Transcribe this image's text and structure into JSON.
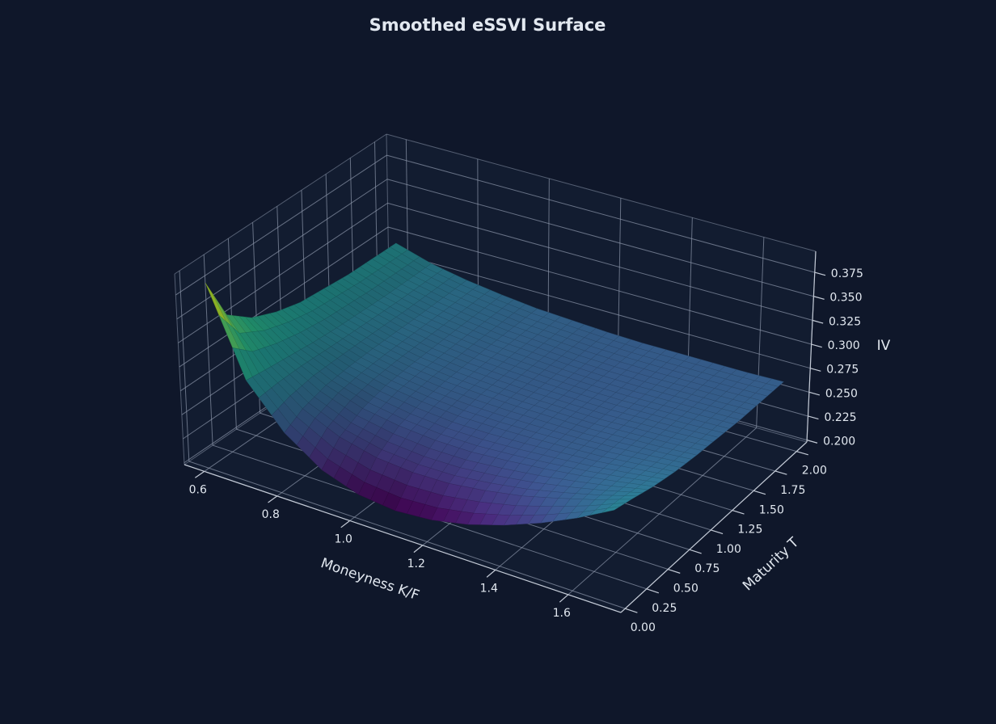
{
  "chart_data": {
    "type": "surface",
    "title": "Smoothed eSSVI Surface",
    "xlabel": "Moneyness K/F",
    "ylabel": "Maturity T",
    "zlabel": "IV",
    "xlim": [
      0.545,
      1.745
    ],
    "ylim": [
      -0.05,
      2.12
    ],
    "zlim": [
      0.198,
      0.397
    ],
    "x_ticks": [
      "0.6",
      "0.8",
      "1.0",
      "1.2",
      "1.4",
      "1.6"
    ],
    "y_ticks": [
      "0.00",
      "0.25",
      "0.50",
      "0.75",
      "1.00",
      "1.25",
      "1.50",
      "1.75",
      "2.00"
    ],
    "z_ticks": [
      "0.200",
      "0.225",
      "0.250",
      "0.275",
      "0.300",
      "0.325",
      "0.350",
      "0.375"
    ],
    "grid": true,
    "colormap": "viridis",
    "moneyness": [
      0.6,
      0.7,
      0.8,
      0.9,
      1.0,
      1.1,
      1.2,
      1.3,
      1.4,
      1.5,
      1.6,
      1.7
    ],
    "maturity": [
      0.05,
      0.25,
      0.5,
      0.75,
      1.0,
      1.5,
      2.0
    ],
    "iv": [
      [
        0.388,
        0.299,
        0.257,
        0.231,
        0.218,
        0.214,
        0.217,
        0.225,
        0.237,
        0.252,
        0.27,
        0.291
      ],
      [
        0.341,
        0.296,
        0.268,
        0.251,
        0.242,
        0.239,
        0.24,
        0.245,
        0.252,
        0.262,
        0.273,
        0.286
      ],
      [
        0.321,
        0.293,
        0.275,
        0.263,
        0.257,
        0.254,
        0.254,
        0.257,
        0.261,
        0.266,
        0.272,
        0.279
      ],
      [
        0.31,
        0.29,
        0.277,
        0.269,
        0.264,
        0.261,
        0.261,
        0.262,
        0.264,
        0.266,
        0.27,
        0.274
      ],
      [
        0.303,
        0.288,
        0.278,
        0.271,
        0.267,
        0.265,
        0.264,
        0.264,
        0.264,
        0.266,
        0.268,
        0.271
      ],
      [
        0.298,
        0.286,
        0.278,
        0.273,
        0.269,
        0.267,
        0.265,
        0.264,
        0.264,
        0.265,
        0.266,
        0.267
      ],
      [
        0.297,
        0.286,
        0.279,
        0.274,
        0.27,
        0.268,
        0.266,
        0.265,
        0.265,
        0.265,
        0.265,
        0.266
      ]
    ]
  },
  "colors": {
    "background": "#0f172a",
    "pane": "#121c30",
    "grid": "#8b96aa",
    "text": "#e2e8f0"
  }
}
